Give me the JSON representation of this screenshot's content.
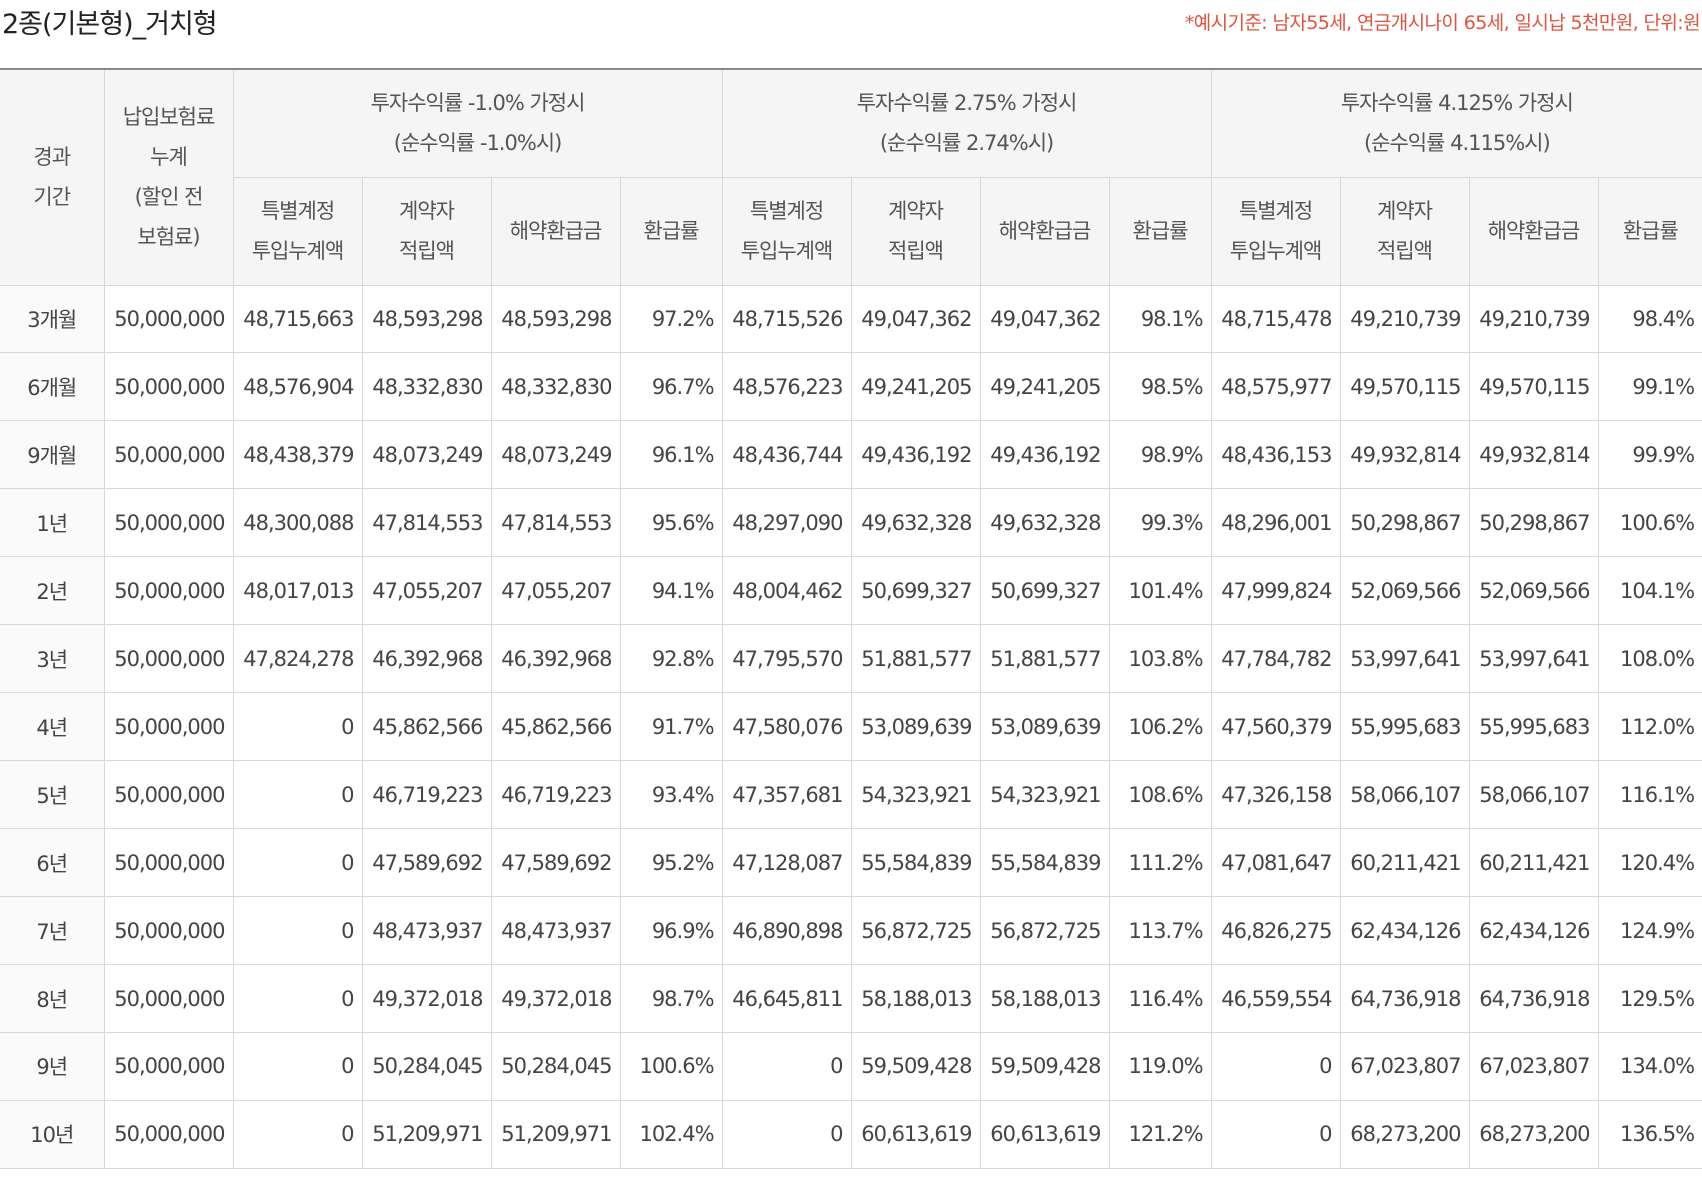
{
  "page": {
    "title": "2종(기본형)_거치형",
    "note": "*예시기준: 남자55세, 연금개시나이 65세, 일시납 5천만원, 단위:원"
  },
  "table": {
    "head": {
      "period": [
        "경과",
        "기간"
      ],
      "premium": [
        "납입보험료",
        "누계",
        "(할인 전",
        "보험료)"
      ],
      "scenarios": [
        {
          "line1": "투자수익률 -1.0% 가정시",
          "line2": "(순수익률 -1.0%시)"
        },
        {
          "line1": "투자수익률 2.75% 가정시",
          "line2": "(순수익률 2.74%시)"
        },
        {
          "line1": "투자수익률 4.125% 가정시",
          "line2": "(순수익률 4.115%시)"
        }
      ],
      "sub": {
        "special": [
          "특별계정",
          "투입누계액"
        ],
        "reserve": [
          "계약자",
          "적립액"
        ],
        "surrender": "해약환급금",
        "rate": "환급률"
      }
    },
    "rows": [
      {
        "period": "3개월",
        "premium": "50,000,000",
        "s": [
          [
            "48,715,663",
            "48,593,298",
            "48,593,298",
            "97.2%"
          ],
          [
            "48,715,526",
            "49,047,362",
            "49,047,362",
            "98.1%"
          ],
          [
            "48,715,478",
            "49,210,739",
            "49,210,739",
            "98.4%"
          ]
        ]
      },
      {
        "period": "6개월",
        "premium": "50,000,000",
        "s": [
          [
            "48,576,904",
            "48,332,830",
            "48,332,830",
            "96.7%"
          ],
          [
            "48,576,223",
            "49,241,205",
            "49,241,205",
            "98.5%"
          ],
          [
            "48,575,977",
            "49,570,115",
            "49,570,115",
            "99.1%"
          ]
        ]
      },
      {
        "period": "9개월",
        "premium": "50,000,000",
        "s": [
          [
            "48,438,379",
            "48,073,249",
            "48,073,249",
            "96.1%"
          ],
          [
            "48,436,744",
            "49,436,192",
            "49,436,192",
            "98.9%"
          ],
          [
            "48,436,153",
            "49,932,814",
            "49,932,814",
            "99.9%"
          ]
        ]
      },
      {
        "period": "1년",
        "premium": "50,000,000",
        "s": [
          [
            "48,300,088",
            "47,814,553",
            "47,814,553",
            "95.6%"
          ],
          [
            "48,297,090",
            "49,632,328",
            "49,632,328",
            "99.3%"
          ],
          [
            "48,296,001",
            "50,298,867",
            "50,298,867",
            "100.6%"
          ]
        ]
      },
      {
        "period": "2년",
        "premium": "50,000,000",
        "s": [
          [
            "48,017,013",
            "47,055,207",
            "47,055,207",
            "94.1%"
          ],
          [
            "48,004,462",
            "50,699,327",
            "50,699,327",
            "101.4%"
          ],
          [
            "47,999,824",
            "52,069,566",
            "52,069,566",
            "104.1%"
          ]
        ]
      },
      {
        "period": "3년",
        "premium": "50,000,000",
        "s": [
          [
            "47,824,278",
            "46,392,968",
            "46,392,968",
            "92.8%"
          ],
          [
            "47,795,570",
            "51,881,577",
            "51,881,577",
            "103.8%"
          ],
          [
            "47,784,782",
            "53,997,641",
            "53,997,641",
            "108.0%"
          ]
        ]
      },
      {
        "period": "4년",
        "premium": "50,000,000",
        "s": [
          [
            "0",
            "45,862,566",
            "45,862,566",
            "91.7%"
          ],
          [
            "47,580,076",
            "53,089,639",
            "53,089,639",
            "106.2%"
          ],
          [
            "47,560,379",
            "55,995,683",
            "55,995,683",
            "112.0%"
          ]
        ]
      },
      {
        "period": "5년",
        "premium": "50,000,000",
        "s": [
          [
            "0",
            "46,719,223",
            "46,719,223",
            "93.4%"
          ],
          [
            "47,357,681",
            "54,323,921",
            "54,323,921",
            "108.6%"
          ],
          [
            "47,326,158",
            "58,066,107",
            "58,066,107",
            "116.1%"
          ]
        ]
      },
      {
        "period": "6년",
        "premium": "50,000,000",
        "s": [
          [
            "0",
            "47,589,692",
            "47,589,692",
            "95.2%"
          ],
          [
            "47,128,087",
            "55,584,839",
            "55,584,839",
            "111.2%"
          ],
          [
            "47,081,647",
            "60,211,421",
            "60,211,421",
            "120.4%"
          ]
        ]
      },
      {
        "period": "7년",
        "premium": "50,000,000",
        "s": [
          [
            "0",
            "48,473,937",
            "48,473,937",
            "96.9%"
          ],
          [
            "46,890,898",
            "56,872,725",
            "56,872,725",
            "113.7%"
          ],
          [
            "46,826,275",
            "62,434,126",
            "62,434,126",
            "124.9%"
          ]
        ]
      },
      {
        "period": "8년",
        "premium": "50,000,000",
        "s": [
          [
            "0",
            "49,372,018",
            "49,372,018",
            "98.7%"
          ],
          [
            "46,645,811",
            "58,188,013",
            "58,188,013",
            "116.4%"
          ],
          [
            "46,559,554",
            "64,736,918",
            "64,736,918",
            "129.5%"
          ]
        ]
      },
      {
        "period": "9년",
        "premium": "50,000,000",
        "s": [
          [
            "0",
            "50,284,045",
            "50,284,045",
            "100.6%"
          ],
          [
            "0",
            "59,509,428",
            "59,509,428",
            "119.0%"
          ],
          [
            "0",
            "67,023,807",
            "67,023,807",
            "134.0%"
          ]
        ]
      },
      {
        "period": "10년",
        "premium": "50,000,000",
        "s": [
          [
            "0",
            "51,209,971",
            "51,209,971",
            "102.4%"
          ],
          [
            "0",
            "60,613,619",
            "60,613,619",
            "121.2%"
          ],
          [
            "0",
            "68,273,200",
            "68,273,200",
            "136.5%"
          ]
        ]
      }
    ]
  }
}
